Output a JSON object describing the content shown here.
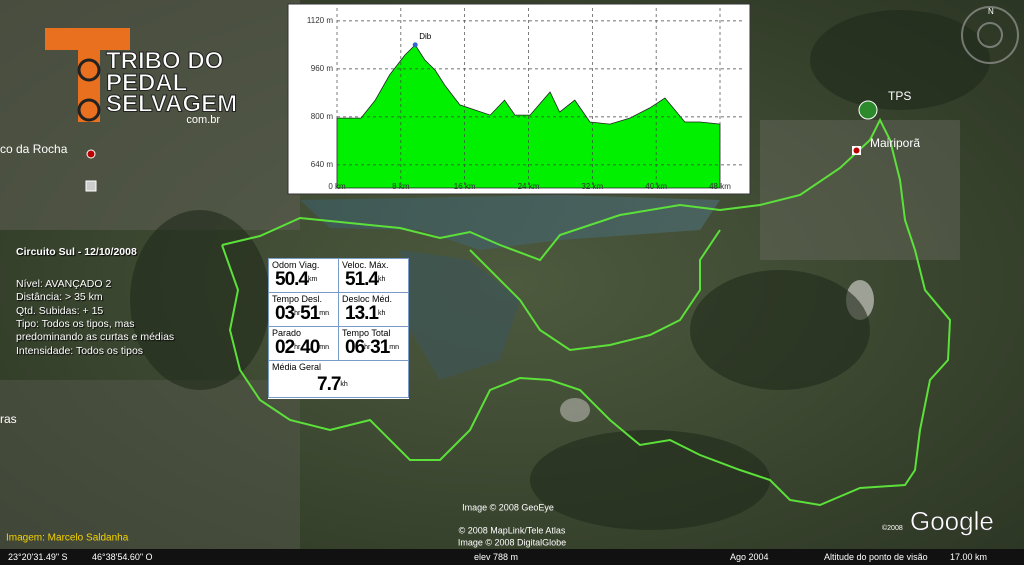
{
  "logo": {
    "line1": "TRIBO DO",
    "line2": "PEDAL",
    "line3": "SELVAGEM",
    "domain": "com.br"
  },
  "places": [
    "co da Rocha",
    "ras",
    "Mairiporã",
    "TPS"
  ],
  "compass": "N",
  "route_info": {
    "title": "Circuito Sul - 12/10/2008",
    "lines": [
      "Nível: AVANÇADO 2",
      "Distância: > 35 km",
      "Qtd. Subidas: + 15",
      "Tipo: Todos os tipos, mas",
      "predominando as curtas e médias",
      "Intensidade: Todos os tipos"
    ]
  },
  "elevation_chart": {
    "type": "area",
    "color": "#00f000",
    "annotation": "Dib",
    "x": [
      0,
      3,
      4.8,
      6.6,
      8.5,
      9.8,
      11,
      12.3,
      13.5,
      15.4,
      17.3,
      19.2,
      21,
      22.3,
      24.2,
      26.7,
      27.9,
      29.8,
      31.7,
      34.2,
      36.7,
      39.2,
      41.1,
      43.6,
      45.5,
      48
    ],
    "values": [
      796,
      796,
      856,
      940,
      1006,
      1040,
      990,
      956,
      906,
      840,
      823,
      806,
      856,
      806,
      806,
      883,
      816,
      856,
      783,
      776,
      796,
      830,
      863,
      783,
      783,
      776
    ],
    "xlim": [
      0,
      48
    ],
    "ylim": [
      563,
      1163
    ],
    "xticks": [
      {
        "value": 0,
        "label": "0 km"
      },
      {
        "value": 8,
        "label": "8 km"
      },
      {
        "value": 16,
        "label": "16 km"
      },
      {
        "value": 24,
        "label": "24 km"
      },
      {
        "value": 32,
        "label": "32 km"
      },
      {
        "value": 40,
        "label": "40 km"
      },
      {
        "value": 48,
        "label": "48 km"
      }
    ],
    "yticks": [
      {
        "value": 640,
        "label": "640 m"
      },
      {
        "value": 800,
        "label": "800 m"
      },
      {
        "value": 960,
        "label": "960 m"
      },
      {
        "value": 1120,
        "label": "1120 m"
      }
    ],
    "grid": true
  },
  "trip_computer": {
    "cells": [
      {
        "label": "Odom Viag.",
        "parts": [
          "50.4",
          "km"
        ]
      },
      {
        "label": "Veloc. Máx.",
        "parts": [
          "51.4",
          "kh"
        ]
      },
      {
        "label": "Tempo Desl.",
        "parts": [
          "03",
          "hr",
          "51",
          "mn"
        ]
      },
      {
        "label": "Desloc Méd.",
        "parts": [
          "13.1",
          "kh"
        ]
      },
      {
        "label": "Parado",
        "parts": [
          "02",
          "hr",
          "40",
          "mn"
        ]
      },
      {
        "label": "Tempo Total",
        "parts": [
          "06",
          "hr",
          "31",
          "mn"
        ]
      },
      {
        "label": "Média Geral",
        "parts": [
          "7.7",
          "kh"
        ]
      }
    ]
  },
  "credits": [
    "Image © 2008 GeoEye",
    "© 2008 MapLink/Tele Atlas",
    "Image © 2008 DigitalGlobe",
    "©2008",
    "Google"
  ],
  "image_credit": "Imagem: Marcelo Saldanha",
  "status": [
    "23°20'31.49\" S",
    "46°38'54.60\" O",
    "elev  788 m",
    "Ago 2004",
    "Altitude do ponto de visão",
    "17.00 km"
  ]
}
